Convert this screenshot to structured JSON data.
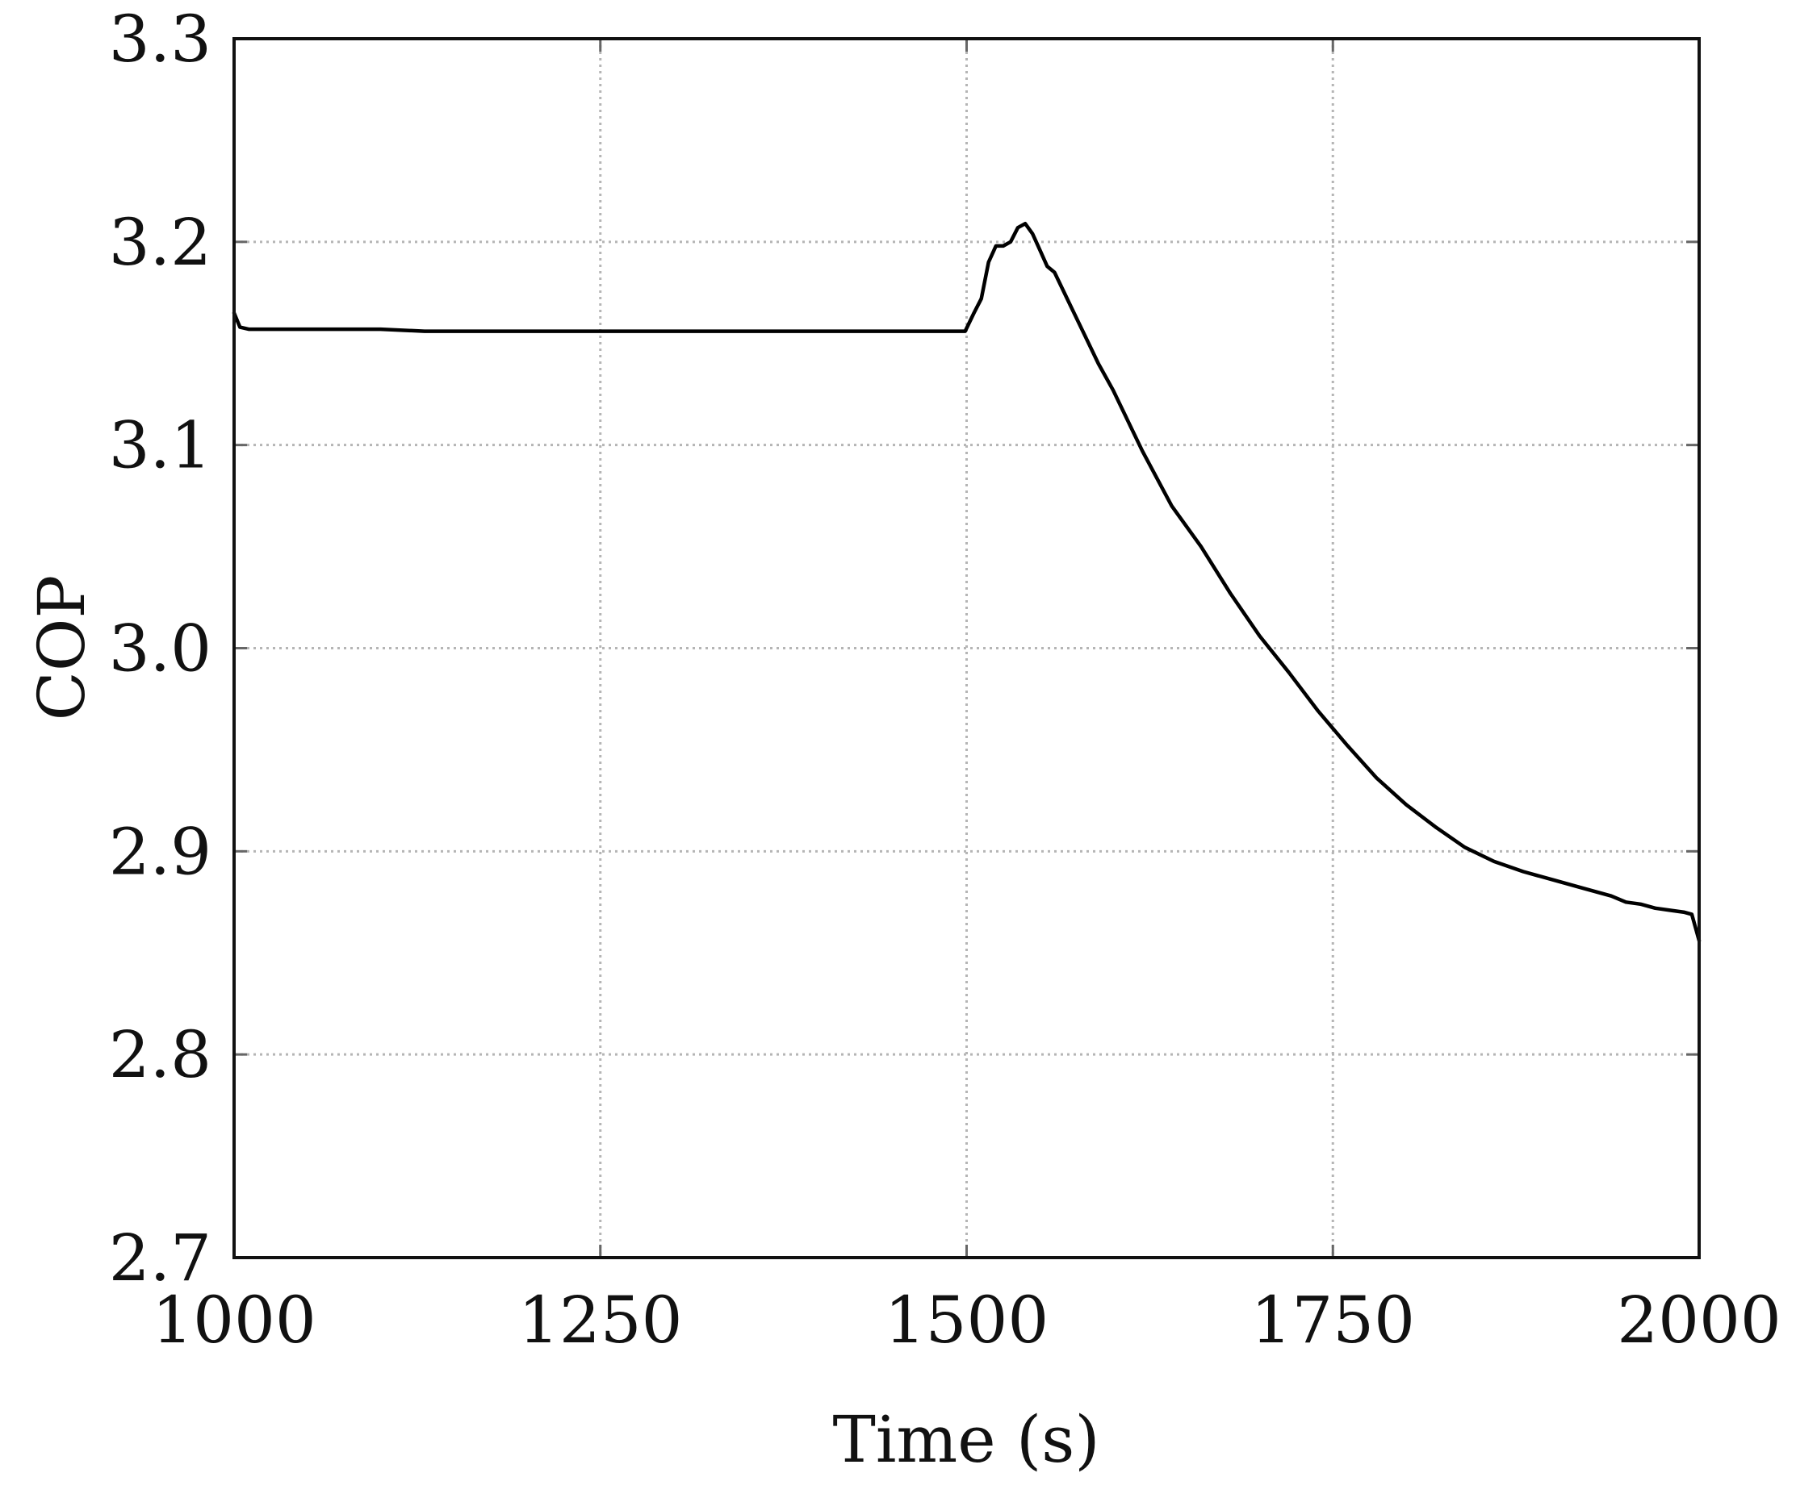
{
  "chart_data": {
    "type": "line",
    "title": "",
    "xlabel": "Time (s)",
    "ylabel": "COP",
    "xlim": [
      1000,
      2000
    ],
    "ylim": [
      2.7,
      3.3
    ],
    "xticks": [
      1000,
      1250,
      1500,
      1750,
      2000
    ],
    "xtick_labels": [
      "1000",
      "1250",
      "1500",
      "1750",
      "2000"
    ],
    "yticks": [
      2.7,
      2.8,
      2.9,
      3.0,
      3.1,
      3.2,
      3.3
    ],
    "ytick_labels": [
      "2.7",
      "2.8",
      "2.9",
      "3.0",
      "3.1",
      "3.2",
      "3.3"
    ],
    "grid": true,
    "legend": "none",
    "series": [
      {
        "color": "#000000",
        "x": [
          1000,
          1004,
          1010,
          1100,
          1130,
          1200,
          1300,
          1400,
          1499,
          1505,
          1510,
          1515,
          1520,
          1525,
          1530,
          1535,
          1540,
          1545,
          1550,
          1555,
          1560,
          1570,
          1580,
          1590,
          1600,
          1620,
          1640,
          1660,
          1680,
          1700,
          1720,
          1740,
          1760,
          1780,
          1800,
          1820,
          1840,
          1860,
          1880,
          1900,
          1920,
          1940,
          1950,
          1960,
          1970,
          1980,
          1990,
          1995,
          2000
        ],
        "y": [
          3.165,
          3.158,
          3.157,
          3.157,
          3.156,
          3.156,
          3.156,
          3.156,
          3.156,
          3.165,
          3.172,
          3.19,
          3.198,
          3.198,
          3.2,
          3.207,
          3.209,
          3.204,
          3.196,
          3.188,
          3.185,
          3.17,
          3.155,
          3.14,
          3.127,
          3.097,
          3.07,
          3.05,
          3.027,
          3.006,
          2.988,
          2.969,
          2.952,
          2.936,
          2.923,
          2.912,
          2.902,
          2.895,
          2.89,
          2.886,
          2.882,
          2.878,
          2.875,
          2.874,
          2.872,
          2.871,
          2.87,
          2.869,
          2.856
        ]
      }
    ]
  }
}
